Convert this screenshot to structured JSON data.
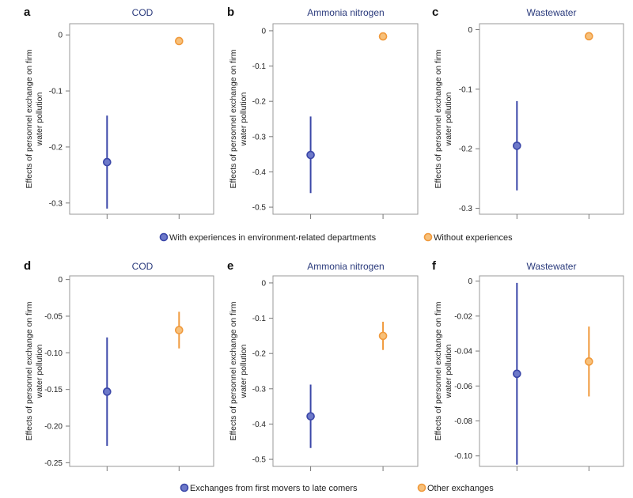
{
  "colors": {
    "blue": "#3a46a8",
    "blue_fill": "#6d79c9",
    "orange": "#f0993b",
    "orange_fill": "#f7c07a"
  },
  "chart_data": [
    {
      "type": "scatter",
      "panel": "a",
      "title": "COD",
      "ylabel": [
        "Effects of personnel exchange on firm",
        "water pollution"
      ],
      "ylim": [
        -0.32,
        0.02
      ],
      "yticks": [
        0,
        -0.1,
        -0.2,
        -0.3
      ],
      "ytick_labels": [
        "0",
        "-0.1",
        "-0.2",
        "-0.3"
      ],
      "points": [
        {
          "series": "With experiences in environment-related departments",
          "color": "blue",
          "y": -0.227,
          "low": -0.31,
          "high": -0.144
        },
        {
          "series": "Without experiences",
          "color": "orange",
          "y": -0.011,
          "low": null,
          "high": null
        }
      ]
    },
    {
      "type": "scatter",
      "panel": "b",
      "title": "Ammonia nitrogen",
      "ylabel": [
        "Effects of personnel exchange on firm",
        "water pollution"
      ],
      "ylim": [
        -0.52,
        0.02
      ],
      "yticks": [
        0,
        -0.1,
        -0.2,
        -0.3,
        -0.4,
        -0.5
      ],
      "ytick_labels": [
        "0",
        "-0.1",
        "-0.2",
        "-0.3",
        "-0.4",
        "-0.5"
      ],
      "points": [
        {
          "series": "With experiences in environment-related departments",
          "color": "blue",
          "y": -0.352,
          "low": -0.46,
          "high": -0.243
        },
        {
          "series": "Without experiences",
          "color": "orange",
          "y": -0.016,
          "low": null,
          "high": null
        }
      ]
    },
    {
      "type": "scatter",
      "panel": "c",
      "title": "Wastewater",
      "ylabel": [
        "Effects of personnel exchange on firm",
        "water pollution"
      ],
      "ylim": [
        -0.31,
        0.01
      ],
      "yticks": [
        0,
        -0.1,
        -0.2,
        -0.3
      ],
      "ytick_labels": [
        "0",
        "-0.1",
        "-0.2",
        "-0.3"
      ],
      "points": [
        {
          "series": "With experiences in environment-related departments",
          "color": "blue",
          "y": -0.195,
          "low": -0.27,
          "high": -0.12
        },
        {
          "series": "Without experiences",
          "color": "orange",
          "y": -0.011,
          "low": null,
          "high": null
        }
      ]
    },
    {
      "type": "scatter",
      "panel": "d",
      "title": "COD",
      "ylabel": [
        "Effects of personnel exchange on firm",
        "water pollution"
      ],
      "ylim": [
        -0.255,
        0.005
      ],
      "yticks": [
        0,
        -0.05,
        -0.1,
        -0.15,
        -0.2,
        -0.25
      ],
      "ytick_labels": [
        "0",
        "-0.05",
        "-0.10",
        "-0.15",
        "-0.20",
        "-0.25"
      ],
      "points": [
        {
          "series": "Exchanges from first movers to late comers",
          "color": "blue",
          "y": -0.153,
          "low": -0.227,
          "high": -0.079
        },
        {
          "series": "Other exchanges",
          "color": "orange",
          "y": -0.069,
          "low": -0.094,
          "high": -0.044
        }
      ]
    },
    {
      "type": "scatter",
      "panel": "e",
      "title": "Ammonia nitrogen",
      "ylabel": [
        "Effects of personnel exchange on firm",
        "water pollution"
      ],
      "ylim": [
        -0.52,
        0.02
      ],
      "yticks": [
        0,
        -0.1,
        -0.2,
        -0.3,
        -0.4,
        -0.5
      ],
      "ytick_labels": [
        "0",
        "-0.1",
        "-0.2",
        "-0.3",
        "-0.4",
        "-0.5"
      ],
      "points": [
        {
          "series": "Exchanges from first movers to late comers",
          "color": "blue",
          "y": -0.378,
          "low": -0.468,
          "high": -0.288
        },
        {
          "series": "Other exchanges",
          "color": "orange",
          "y": -0.15,
          "low": -0.19,
          "high": -0.11
        }
      ]
    },
    {
      "type": "scatter",
      "panel": "f",
      "title": "Wastewater",
      "ylabel": [
        "Effects of personnel exchange on firm",
        "water pollution"
      ],
      "ylim": [
        -0.106,
        0.003
      ],
      "yticks": [
        0,
        -0.02,
        -0.04,
        -0.06,
        -0.08,
        -0.1
      ],
      "ytick_labels": [
        "0",
        "-0.02",
        "-0.04",
        "-0.06",
        "-0.08",
        "-0.10"
      ],
      "points": [
        {
          "series": "Exchanges from first movers to late comers",
          "color": "blue",
          "y": -0.053,
          "low": -0.105,
          "high": -0.001
        },
        {
          "series": "Other exchanges",
          "color": "orange",
          "y": -0.046,
          "low": -0.066,
          "high": -0.026
        }
      ]
    }
  ],
  "legends": [
    {
      "items": [
        {
          "label": "With experiences in environment-related departments",
          "color": "blue"
        },
        {
          "label": "Without experiences",
          "color": "orange"
        }
      ]
    },
    {
      "items": [
        {
          "label": "Exchanges from first movers to late comers",
          "color": "blue"
        },
        {
          "label": "Other exchanges",
          "color": "orange"
        }
      ]
    }
  ]
}
